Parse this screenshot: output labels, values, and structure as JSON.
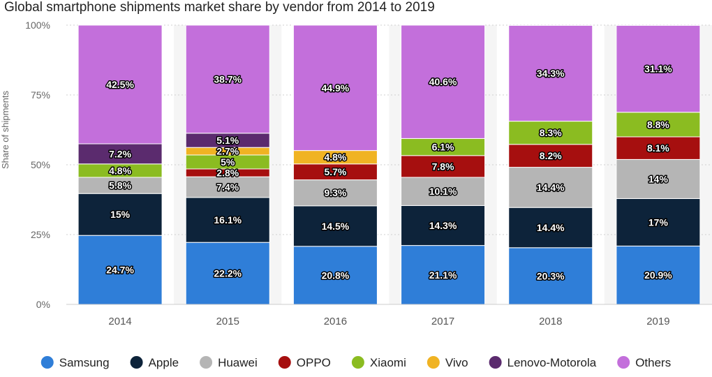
{
  "chart_data": {
    "type": "bar",
    "stacked": true,
    "title": "Global smartphone shipments market share by vendor from 2014 to 2019",
    "ylabel": "Share of shipments",
    "xlabel": "",
    "ylim": [
      0,
      100
    ],
    "yticks": [
      "0%",
      "25%",
      "50%",
      "75%",
      "100%"
    ],
    "categories": [
      "2014",
      "2015",
      "2016",
      "2017",
      "2018",
      "2019"
    ],
    "legend_position": "bottom",
    "series": [
      {
        "name": "Samsung",
        "color": "#2f7ed8",
        "values": [
          24.7,
          22.2,
          20.8,
          21.1,
          20.3,
          20.9
        ],
        "labels": [
          "24.7%",
          "22.2%",
          "20.8%",
          "21.1%",
          "20.3%",
          "20.9%"
        ]
      },
      {
        "name": "Apple",
        "color": "#0d233a",
        "values": [
          15,
          16.1,
          14.5,
          14.3,
          14.4,
          17
        ],
        "labels": [
          "15%",
          "16.1%",
          "14.5%",
          "14.3%",
          "14.4%",
          "17%"
        ]
      },
      {
        "name": "Huawei",
        "color": "#b5b5b5",
        "values": [
          5.8,
          7.4,
          9.3,
          10.1,
          14.4,
          14
        ],
        "labels": [
          "5.8%",
          "7.4%",
          "9.3%",
          "10.1%",
          "14.4%",
          "14%"
        ]
      },
      {
        "name": "OPPO",
        "color": "#a60f0f",
        "values": [
          0,
          2.8,
          5.7,
          7.8,
          8.2,
          8.1
        ],
        "labels": [
          "",
          "2.8%",
          "5.7%",
          "7.8%",
          "8.2%",
          "8.1%"
        ]
      },
      {
        "name": "Xiaomi",
        "color": "#8bbc21",
        "values": [
          4.8,
          5,
          0,
          6.1,
          8.3,
          8.8
        ],
        "labels": [
          "4.8%",
          "5%",
          "",
          "6.1%",
          "8.3%",
          "8.8%"
        ]
      },
      {
        "name": "Vivo",
        "color": "#f0b323",
        "values": [
          0,
          2.7,
          4.8,
          0,
          0,
          0
        ],
        "labels": [
          "",
          "2.7%",
          "4.8%",
          "",
          "",
          ""
        ]
      },
      {
        "name": "Lenovo-Motorola",
        "color": "#5b2b6e",
        "values": [
          7.2,
          5.1,
          0,
          0,
          0,
          0
        ],
        "labels": [
          "7.2%",
          "5.1%",
          "",
          "",
          "",
          ""
        ]
      },
      {
        "name": "Others",
        "color": "#c36fdb",
        "values": [
          42.5,
          38.7,
          44.9,
          40.6,
          34.3,
          31.1
        ],
        "labels": [
          "42.5%",
          "38.7%",
          "44.9%",
          "40.6%",
          "34.3%",
          "31.1%"
        ]
      }
    ]
  }
}
